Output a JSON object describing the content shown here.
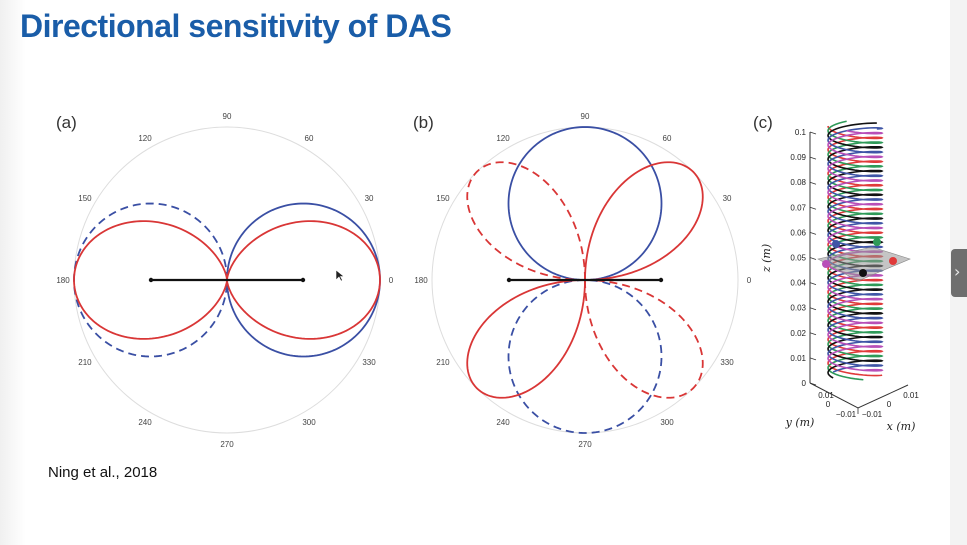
{
  "slide": {
    "title": "Directional sensitivity of DAS",
    "citation": "Ning et al., 2018"
  },
  "figure": {
    "panel_a": {
      "label": "(a)"
    },
    "panel_b": {
      "label": "(b)"
    },
    "panel_c": {
      "label": "(c)",
      "z_axis_label": "z (m)",
      "y_axis_label": "y (m)",
      "x_axis_label": "x (m)",
      "z_ticks": [
        "0",
        "0.01",
        "0.02",
        "0.03",
        "0.04",
        "0.05",
        "0.06",
        "0.07",
        "0.08",
        "0.09",
        "0.1"
      ],
      "y_ticks": [
        "0.01",
        "0",
        "−0.01"
      ],
      "x_ticks": [
        "−0.01",
        "0",
        "0.01"
      ],
      "helix_colors": [
        "#e03a3a",
        "#2e9a58",
        "#111111",
        "#3f55a6",
        "#b84fb8"
      ]
    },
    "polar_angle_labels": [
      "0",
      "30",
      "60",
      "90",
      "120",
      "150",
      "180",
      "210",
      "240",
      "270",
      "300",
      "330"
    ],
    "colors": {
      "red": "#d93636",
      "blue": "#3a4fa4",
      "cable": "#111111",
      "grid": "#dddddd"
    }
  },
  "nav": {
    "next_icon": "chevron-right-icon",
    "glyph": "›"
  },
  "chart_data": [
    {
      "type": "polar",
      "panel": "(a)",
      "theta_ticks_deg": [
        0,
        30,
        60,
        90,
        120,
        150,
        180,
        210,
        240,
        270,
        300,
        330
      ],
      "series": [
        {
          "function": "|cos^2(theta)|",
          "style": "solid",
          "color": "red",
          "values": [
            1,
            0.75,
            0.25,
            0,
            0.25,
            0.75,
            1,
            0.75,
            0.25,
            0,
            0.25,
            0.75
          ]
        },
        {
          "function": "|cos(theta)|",
          "style": "solid",
          "color": "blue",
          "range": "-90..90",
          "values": [
            1,
            0.87,
            0.5,
            0
          ]
        },
        {
          "function": "|cos(theta)|",
          "style": "dashed",
          "color": "blue",
          "range": "90..270",
          "values": [
            0,
            0.5,
            0.87,
            1
          ]
        }
      ],
      "cable": {
        "theta_deg": 0,
        "length": "gauge length"
      }
    },
    {
      "type": "polar",
      "panel": "(b)",
      "theta_ticks_deg": [
        0,
        30,
        60,
        90,
        120,
        150,
        180,
        210,
        240,
        270,
        300,
        330
      ],
      "series": [
        {
          "function": "|sin(2theta)|",
          "style": "solid",
          "color": "red",
          "lobes_deg": [
            45,
            225
          ]
        },
        {
          "function": "|sin(2theta)|",
          "style": "dashed",
          "color": "red",
          "lobes_deg": [
            135,
            315
          ]
        },
        {
          "function": "|sin(theta)|",
          "style": "solid",
          "color": "blue",
          "lobe_deg": 90
        },
        {
          "function": "|sin(theta)|",
          "style": "dashed",
          "color": "blue",
          "lobe_deg": 270
        }
      ]
    },
    {
      "type": "3d-helix",
      "panel": "(c)",
      "z_range": [
        0,
        0.1
      ],
      "x_range": [
        -0.01,
        0.01
      ],
      "y_range": [
        -0.01,
        0.01
      ],
      "helices": 5
    }
  ]
}
